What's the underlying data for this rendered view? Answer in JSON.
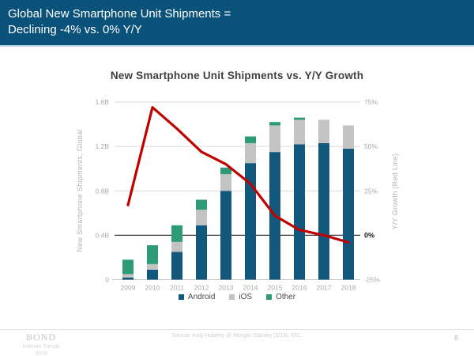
{
  "header": {
    "title_line1": "Global New Smartphone Unit Shipments =",
    "title_line2": "Declining -4% vs. 0% Y/Y"
  },
  "colors": {
    "header_bg": "#0B527A",
    "android": "#12587C",
    "ios": "#C3C3C3",
    "other": "#2E9B77",
    "growth_line": "#C00000"
  },
  "chart_data": {
    "type": "bar",
    "subtype": "stacked-bar-with-line-overlay",
    "title": "New Smartphone Unit Shipments vs. Y/Y Growth",
    "categories": [
      "2009",
      "2010",
      "2011",
      "2012",
      "2013",
      "2014",
      "2015",
      "2016",
      "2017",
      "2018"
    ],
    "series": [
      {
        "name": "Android",
        "color": "#12587C",
        "values": [
          0.02,
          0.09,
          0.25,
          0.49,
          0.8,
          1.05,
          1.15,
          1.22,
          1.23,
          1.18
        ]
      },
      {
        "name": "iOS",
        "color": "#C3C3C3",
        "values": [
          0.03,
          0.05,
          0.09,
          0.14,
          0.15,
          0.18,
          0.24,
          0.22,
          0.21,
          0.21
        ]
      },
      {
        "name": "Other",
        "color": "#2E9B77",
        "values": [
          0.13,
          0.17,
          0.15,
          0.09,
          0.06,
          0.06,
          0.03,
          0.02,
          0.0,
          0.0
        ]
      }
    ],
    "line_overlay": {
      "name": "Y/Y Growth",
      "color": "#C00000",
      "axis": "right",
      "values_pct": [
        17,
        72,
        60,
        47,
        40,
        29,
        11,
        3,
        0,
        -4
      ]
    },
    "left_axis": {
      "label": "New Smartphone Shipments, Global",
      "min": 0,
      "max": 1.6,
      "tick_values": [
        1.6,
        1.2,
        0.8,
        0.4,
        0
      ],
      "tick_labels": [
        "1.6B",
        "1.2B",
        "0.8B",
        "0.4B",
        "0"
      ]
    },
    "right_axis": {
      "label": "Y/Y Growth (Red Line)",
      "min": -25,
      "max": 75,
      "tick_values": [
        75,
        50,
        25,
        0,
        -25
      ],
      "tick_labels": [
        "75%",
        "50%",
        "25%",
        "0%",
        "-25%"
      ],
      "zero_line_value": 0
    },
    "legend": [
      "Android",
      "iOS",
      "Other"
    ],
    "legend_position": "bottom",
    "grid": true
  },
  "footer": {
    "logo_line1": "BOND",
    "logo_line2": "Internet Trends",
    "logo_line3": "2019",
    "source": "Source: Katy Huberty @ Morgan Stanley (3/19), IDC.",
    "page_number": "8"
  }
}
